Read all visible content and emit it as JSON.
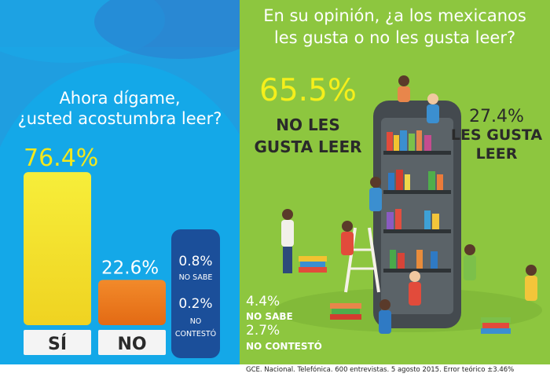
{
  "left": {
    "question_line1": "Ahora dígame,",
    "question_line2": "¿usted acostumbra leer?"
  },
  "right": {
    "question_line1": "En su opinión, ¿a los mexicanos",
    "question_line2": "les gusta o no les gusta leer?"
  },
  "footer": "GCE. Nacional. Telefónica. 600 entrevistas. 5 agosto  2015. Error teórico ±3.46%",
  "colors": {
    "left_bg": "#1f9ee0",
    "right_bg": "#8dc63f",
    "yellow": "#f4e81c",
    "orange": "#ef7d1e",
    "dark_blue": "#1b4f9a",
    "highlight_yellow": "#f5ef1b",
    "dark_text": "#2a2a2a"
  },
  "chart_data": [
    {
      "type": "bar",
      "title": "Ahora dígame, ¿usted acostumbra leer?",
      "categories": [
        "SÍ",
        "NO"
      ],
      "values": [
        76.4,
        22.6
      ],
      "value_labels": [
        "76.4%",
        "22.6%"
      ],
      "extra": [
        {
          "label": "NO SABE",
          "value": 0.8,
          "value_label": "0.8%"
        },
        {
          "label": "NO CONTESTÓ",
          "value": 0.2,
          "value_label": "0.2%"
        }
      ],
      "extra_label_lines": [
        [
          "NO SABE"
        ],
        [
          "NO",
          "CONTESTÓ"
        ]
      ],
      "ylim": [
        0,
        100
      ]
    },
    {
      "type": "table",
      "title": "En su opinión, ¿a los mexicanos les gusta o no les gusta leer?",
      "items": [
        {
          "label": "NO LES GUSTA LEER",
          "label_lines": [
            "NO LES",
            "GUSTA LEER"
          ],
          "value": 65.5,
          "value_label": "65.5%"
        },
        {
          "label": "LES GUSTA LEER",
          "label_lines": [
            "LES GUSTA",
            "LEER"
          ],
          "value": 27.4,
          "value_label": "27.4%"
        },
        {
          "label": "NO SABE",
          "label_lines": [
            "NO SABE"
          ],
          "value": 4.4,
          "value_label": "4.4%"
        },
        {
          "label": "NO CONTESTÓ",
          "label_lines": [
            "NO CONTESTÓ"
          ],
          "value": 2.7,
          "value_label": "2.7%"
        }
      ]
    }
  ]
}
